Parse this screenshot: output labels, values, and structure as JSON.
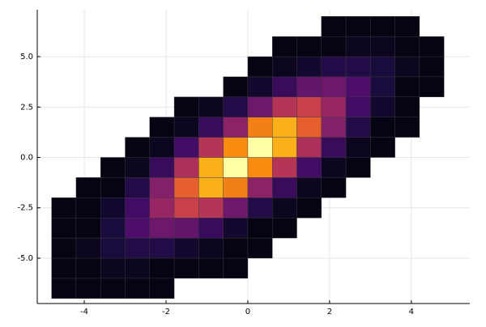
{
  "chart_data": {
    "type": "histogram2d",
    "xbins": [
      -4.8,
      -4.2,
      -3.6,
      -3.0,
      -2.4,
      -1.8,
      -1.2,
      -0.6,
      0,
      0.6,
      1.2,
      1.8,
      2.4,
      3.0,
      3.6,
      4.2,
      4.8
    ],
    "ybins": [
      -7,
      -6,
      -5,
      -4,
      -3,
      -2,
      -1,
      0,
      1,
      2,
      3,
      4,
      5,
      6,
      7
    ],
    "values": [
      [
        1,
        1,
        1,
        1,
        1,
        null,
        null,
        null,
        null,
        null,
        null,
        null,
        null,
        null
      ],
      [
        1,
        1,
        2,
        1,
        1,
        1,
        null,
        null,
        null,
        null,
        null,
        null,
        null,
        null
      ],
      [
        1,
        2,
        4,
        4,
        3,
        1,
        1,
        null,
        null,
        null,
        null,
        null,
        null,
        null
      ],
      [
        1,
        2,
        5,
        9,
        8,
        5,
        2,
        1,
        null,
        null,
        null,
        null,
        null,
        null
      ],
      [
        1,
        1,
        5,
        12,
        16,
        14,
        7,
        2,
        1,
        null,
        null,
        null,
        null,
        null
      ],
      [
        null,
        1,
        3,
        11,
        21,
        25,
        18,
        8,
        2,
        1,
        null,
        null,
        null,
        null
      ],
      [
        null,
        1,
        2,
        7,
        19,
        32,
        32,
        19,
        7,
        2,
        null,
        null,
        null,
        null
      ],
      [
        null,
        1,
        1,
        3,
        12,
        28,
        39,
        29,
        15,
        5,
        1,
        null,
        null,
        null
      ],
      [
        null,
        null,
        1,
        1,
        5,
        15,
        29,
        39,
        28,
        12,
        3,
        1,
        null,
        null
      ],
      [
        null,
        null,
        null,
        1,
        2,
        7,
        19,
        32,
        32,
        19,
        7,
        2,
        1,
        null
      ],
      [
        null,
        null,
        null,
        null,
        1,
        2,
        8,
        18,
        25,
        21,
        11,
        3,
        1,
        null
      ],
      [
        null,
        null,
        null,
        null,
        null,
        1,
        2,
        7,
        14,
        16,
        12,
        5,
        1,
        1
      ],
      [
        null,
        null,
        null,
        null,
        null,
        null,
        1,
        2,
        5,
        8,
        9,
        5,
        2,
        1
      ],
      [
        null,
        null,
        null,
        null,
        null,
        null,
        null,
        1,
        1,
        3,
        4,
        4,
        2,
        1
      ],
      [
        null,
        null,
        null,
        null,
        null,
        null,
        null,
        null,
        1,
        1,
        1,
        2,
        1,
        1
      ],
      [
        null,
        null,
        null,
        null,
        null,
        null,
        null,
        null,
        null,
        null,
        1,
        1,
        1,
        null
      ]
    ],
    "colormap": [
      "#000004",
      "#1b0c41",
      "#4a0c6b",
      "#781c6d",
      "#a52c60",
      "#cf4446",
      "#ed6925",
      "#fb9b06",
      "#f7d13d",
      "#fcffa4"
    ],
    "xlim": [
      -5.15,
      5.43
    ],
    "ylim": [
      -7.25,
      7.33
    ],
    "xticks": [
      -4,
      -2,
      0,
      2,
      4
    ],
    "yticks": [
      {
        "value": -5,
        "label": "-5.0"
      },
      -2.5,
      {
        "value": 0,
        "label": "0.0"
      },
      2.5,
      {
        "value": 5,
        "label": "5.0"
      }
    ],
    "grid": true
  }
}
